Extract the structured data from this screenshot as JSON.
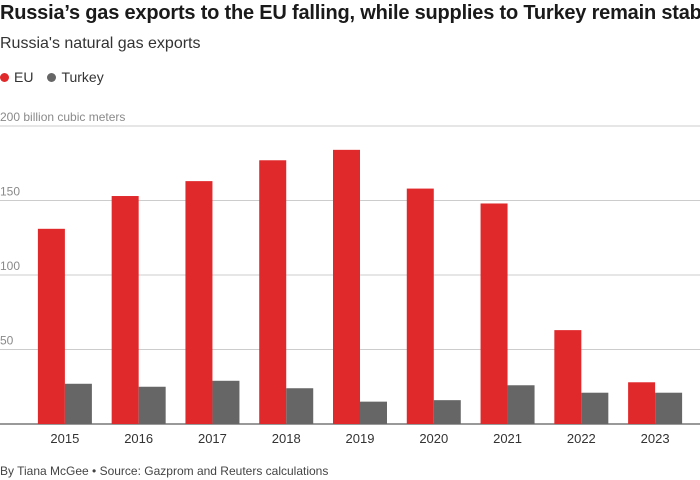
{
  "header": {
    "title": "Russia’s gas exports to the EU falling, while supplies to Turkey remain stable",
    "subtitle": "Russia's natural gas exports"
  },
  "footer": {
    "credit": "By Tiana McGee • Source: Gazprom and Reuters calculations"
  },
  "colors": {
    "eu": "#e0292b",
    "turkey": "#666666",
    "grid": "#cccccc",
    "axis": "#333333"
  },
  "chart_data": {
    "type": "bar",
    "categories": [
      "2015",
      "2016",
      "2017",
      "2018",
      "2019",
      "2020",
      "2021",
      "2022",
      "2023"
    ],
    "series": [
      {
        "name": "EU",
        "values": [
          131,
          153,
          163,
          177,
          184,
          158,
          148,
          63,
          28
        ]
      },
      {
        "name": "Turkey",
        "values": [
          27,
          25,
          29,
          24,
          15,
          16,
          26,
          21,
          21
        ]
      }
    ],
    "ylim": [
      0,
      200
    ],
    "yticks": [
      {
        "value": 50,
        "label": "50"
      },
      {
        "value": 100,
        "label": "100"
      },
      {
        "value": 150,
        "label": "150"
      },
      {
        "value": 200,
        "label": "200 billion cubic meters"
      }
    ],
    "grid": true,
    "legend_position": "top-left"
  }
}
